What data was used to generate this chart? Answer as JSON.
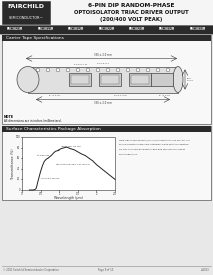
{
  "title_line1": "6-PIN DIP RANDOM-PHASE",
  "title_line2": "OPTOISOLATOR TRIAC DRIVER OUTPUT",
  "title_line3": "(200/400 VOLT PEAK)",
  "company_line1": "FAIRCHILD",
  "company_line2": "SEMICONDUCTOR™",
  "part_numbers": [
    "MOC3023M",
    "MOC3011M",
    "MOC3012M",
    "MOC3022M",
    "MOC3023M",
    "MOC3032M",
    "MOC3033M"
  ],
  "section1_title": "Carrier Tape Specifications",
  "section2_title": "Surface Characteristics Package Absorption",
  "footer_left": "© 2001 Fairchild Semiconductor Corporation",
  "footer_center": "Page 9 of 10",
  "footer_right": "4/2003",
  "bg_color": "#e8e8e8",
  "logo_bg": "#2a2a2a",
  "logo_text_color": "#ffffff",
  "section_hdr_bg": "#2a2a2a",
  "section_hdr_color": "#ffffff",
  "pn_bar_bg": "#2a2a2a",
  "pn_text_color": "#ffffff",
  "border_color": "#555555",
  "note_text1": "NOTE",
  "note_text2": "All dimensions are in inches (millimeters).",
  "graph_ylabel": "Transmittance (%)",
  "graph_xlabel": "Wavelength (µm)",
  "curve_color": "#222222",
  "note2": [
    "Note: Epoxy encapsulants (LIS-7C) transmits 0 to 400 nm, but is a",
    "source of photon energy and interference with detector operation.",
    "DO NOT use short wavelength LEDs with MOC Devices used at",
    "any temperature."
  ]
}
